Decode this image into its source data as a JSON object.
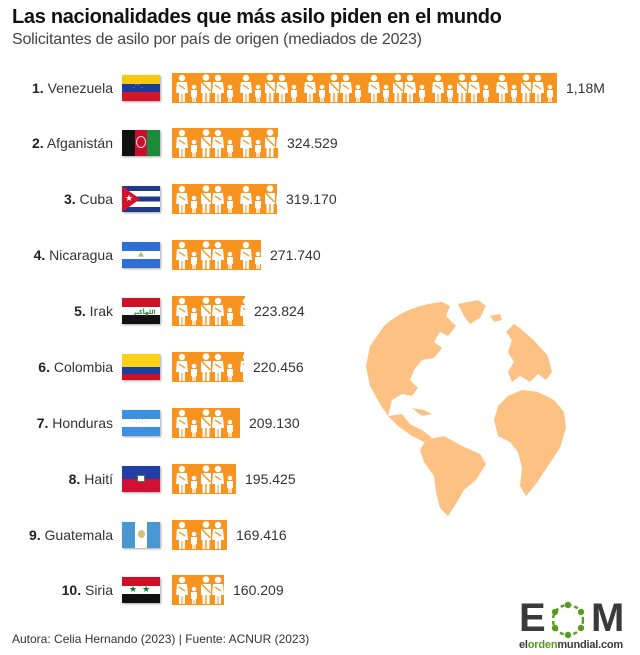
{
  "header": {
    "title": "Las nacionalidades que más asilo piden en el mundo",
    "subtitle": "Solicitantes de asilo por país de origen (mediados de 2023)"
  },
  "colors": {
    "bar": "#f7931e",
    "globe": "#fdc283",
    "logo_green": "#5a9a1e",
    "logo_gray": "#3a3a3a"
  },
  "rows": [
    {
      "rank": "1.",
      "country": "Venezuela",
      "value": "1,18M",
      "flag": "venezuela-flag"
    },
    {
      "rank": "2.",
      "country": "Afganistán",
      "value": "324.529",
      "flag": "afghanistan-flag"
    },
    {
      "rank": "3.",
      "country": "Cuba",
      "value": "319.170",
      "flag": "cuba-flag"
    },
    {
      "rank": "4.",
      "country": "Nicaragua",
      "value": "271.740",
      "flag": "nicaragua-flag"
    },
    {
      "rank": "5.",
      "country": "Irak",
      "value": "223.824",
      "flag": "iraq-flag"
    },
    {
      "rank": "6.",
      "country": "Colombia",
      "value": "220.456",
      "flag": "colombia-flag"
    },
    {
      "rank": "7.",
      "country": "Honduras",
      "value": "209.130",
      "flag": "honduras-flag"
    },
    {
      "rank": "8.",
      "country": "Haití",
      "value": "195.425",
      "flag": "haiti-flag"
    },
    {
      "rank": "9.",
      "country": "Guatemala",
      "value": "169.416",
      "flag": "guatemala-flag"
    },
    {
      "rank": "10.",
      "country": "Siria",
      "value": "160.209",
      "flag": "syria-flag"
    }
  ],
  "footer": {
    "credit": "Autora: Celia Hernando (2023) | Fuente: ACNUR (2023)"
  },
  "logo": {
    "letters_left": "E",
    "letters_right": "M",
    "url_part1": "el",
    "url_part2": "orden",
    "url_part3": "mundial.com"
  },
  "chart_data": {
    "type": "bar",
    "orientation": "horizontal",
    "style": "pictogram",
    "title": "Las nacionalidades que más asilo piden en el mundo",
    "subtitle": "Solicitantes de asilo por país de origen (mediados de 2023)",
    "categories": [
      "Venezuela",
      "Afganistán",
      "Cuba",
      "Nicaragua",
      "Irak",
      "Colombia",
      "Honduras",
      "Haití",
      "Guatemala",
      "Siria"
    ],
    "values": [
      1180000,
      324529,
      319170,
      271740,
      223824,
      220456,
      209130,
      195425,
      169416,
      160209
    ],
    "value_labels": [
      "1,18M",
      "324.529",
      "319.170",
      "271.740",
      "223.824",
      "220.456",
      "209.130",
      "195.425",
      "169.416",
      "160.209"
    ],
    "xlabel": "",
    "ylabel": "",
    "grid": false,
    "legend": null,
    "source": "ACNUR (2023)"
  }
}
